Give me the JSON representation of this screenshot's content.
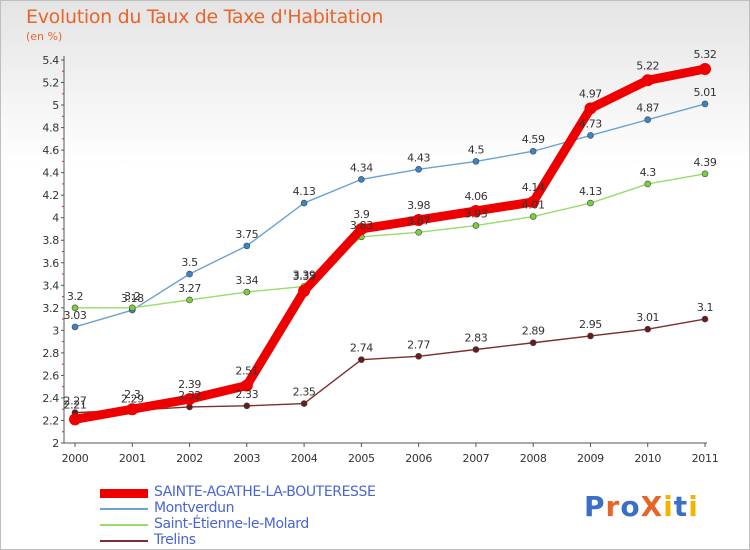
{
  "title": "Evolution du Taux de Taxe d'Habitation",
  "subtitle": "(en %)",
  "logo": {
    "text": "ProXiti",
    "letters": [
      "P",
      "r",
      "o",
      "X",
      "i",
      "t",
      "i"
    ],
    "colors": [
      "#3a6fc8",
      "#e8652a",
      "#3a6fc8",
      "#e8652a",
      "#f2b400",
      "#3a6fc8",
      "#f2b400"
    ]
  },
  "chart_data": {
    "type": "line",
    "x": [
      "2000",
      "2001",
      "2002",
      "2003",
      "2004",
      "2005",
      "2006",
      "2007",
      "2008",
      "2009",
      "2010",
      "2011"
    ],
    "ylim": [
      2,
      5.4
    ],
    "yticks": [
      "2",
      "2.2",
      "2.4",
      "2.6",
      "2.8",
      "3",
      "3.2",
      "3.4",
      "3.6",
      "3.8",
      "4",
      "4.2",
      "4.4",
      "4.6",
      "4.8",
      "5",
      "5.2",
      "5.4"
    ],
    "grid": false,
    "legend": "bottom-left",
    "series": [
      {
        "name": "SAINTE-AGATHE-LA-BOUTERESSE",
        "color": "#ee0000",
        "width": 9,
        "marker": "#ee0000",
        "marker_r": 6,
        "values": [
          2.21,
          2.3,
          2.39,
          2.51,
          3.35,
          3.9,
          3.98,
          4.06,
          4.14,
          4.97,
          5.22,
          5.32
        ],
        "labels": [
          "2.21",
          "2.3",
          "2.39",
          "2.51",
          "3.35",
          "3.9",
          "3.98",
          "4.06",
          "4.14",
          "4.97",
          "5.22",
          "5.32"
        ]
      },
      {
        "name": "Montverdun",
        "color": "#6aa2d2",
        "width": 1.4,
        "marker": "#3a84c8",
        "marker_r": 3,
        "values": [
          3.03,
          3.18,
          3.5,
          3.75,
          4.13,
          4.34,
          4.43,
          4.5,
          4.59,
          4.73,
          4.87,
          5.01
        ],
        "labels": [
          "3.03",
          "3.18",
          "3.5",
          "3.75",
          "4.13",
          "4.34",
          "4.43",
          "4.5",
          "4.59",
          "4.73",
          "4.87",
          "5.01"
        ]
      },
      {
        "name": "Saint-Étienne-le-Molard",
        "color": "#9adb6a",
        "width": 1.4,
        "marker": "#7ccf3c",
        "marker_r": 3,
        "values": [
          3.2,
          3.2,
          3.27,
          3.34,
          3.39,
          3.83,
          3.87,
          3.93,
          4.01,
          4.13,
          4.3,
          4.39
        ],
        "labels": [
          "3.2",
          "3.2",
          "3.27",
          "3.34",
          "3.39",
          "3.83",
          "3.87",
          "3.93",
          "4.01",
          "4.13",
          "4.3",
          "4.39"
        ]
      },
      {
        "name": "Trelins",
        "color": "#7a3030",
        "width": 1.4,
        "marker": "#6a1a1a",
        "marker_r": 3,
        "values": [
          2.27,
          2.29,
          2.32,
          2.33,
          2.35,
          2.74,
          2.77,
          2.83,
          2.89,
          2.95,
          3.01,
          3.1
        ],
        "labels": [
          "2.27",
          "2.29",
          "2.32",
          "2.33",
          "2.35",
          "2.74",
          "2.77",
          "2.83",
          "2.89",
          "2.95",
          "3.01",
          "3.1"
        ]
      }
    ]
  }
}
